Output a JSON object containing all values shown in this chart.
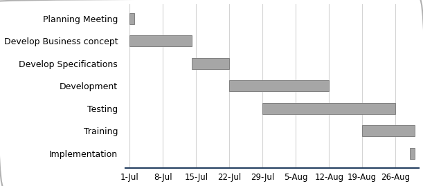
{
  "tasks": [
    "Planning Meeting",
    "Develop Business concept",
    "Develop Specifications",
    "Development",
    "Testing",
    "Training",
    "Implementation"
  ],
  "start_days": [
    0,
    0,
    13,
    21,
    28,
    49,
    59
  ],
  "duration_days": [
    1,
    13,
    8,
    21,
    28,
    11,
    1
  ],
  "bar_color": "#a6a6a6",
  "bar_edge_color": "#808080",
  "bar_linewidth": 0.7,
  "bar_height": 0.5,
  "background_color": "#ffffff",
  "tick_labels": [
    "1-Jul",
    "8-Jul",
    "15-Jul",
    "22-Jul",
    "29-Jul",
    "5-Aug",
    "12-Aug",
    "19-Aug",
    "26-Aug"
  ],
  "tick_positions": [
    0,
    7,
    14,
    21,
    28,
    35,
    42,
    49,
    56
  ],
  "xlim": [
    -1,
    61
  ],
  "ylim": [
    -0.65,
    6.65
  ],
  "grid_color": "#d4d4d4",
  "axis_color": "#243f60",
  "label_fontsize": 9.0,
  "tick_fontsize": 8.5,
  "fig_width": 6.11,
  "fig_height": 2.69,
  "dpi": 100
}
